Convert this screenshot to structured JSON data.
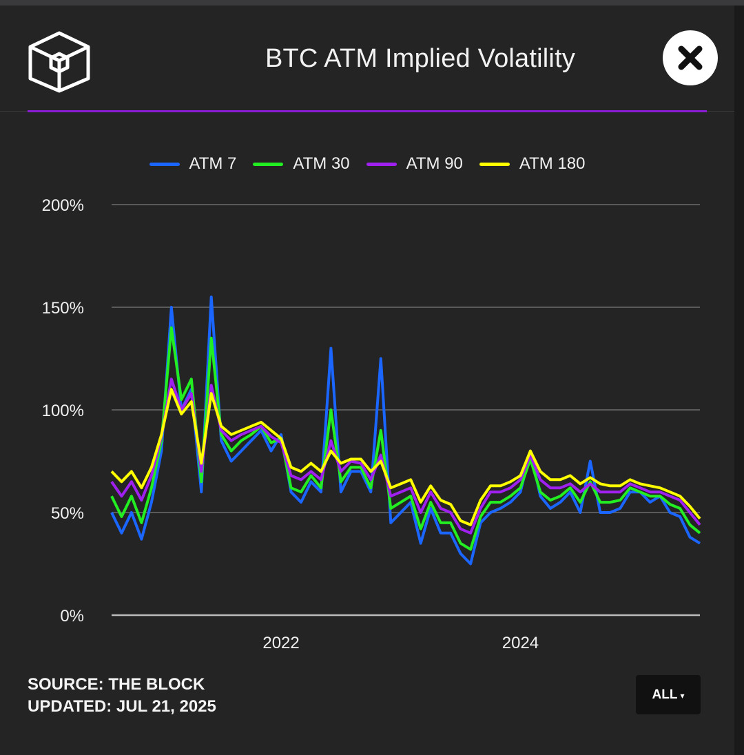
{
  "header": {
    "title": "BTC ATM Implied Volatility",
    "logo_icon": "cube-logo-icon",
    "close_icon": "close-x-icon",
    "accent_color": "#8a1cd4"
  },
  "legend": [
    {
      "name": "ATM 7",
      "color": "#1a66ff"
    },
    {
      "name": "ATM 30",
      "color": "#22ee22"
    },
    {
      "name": "ATM 90",
      "color": "#a020f0"
    },
    {
      "name": "ATM 180",
      "color": "#ffff00"
    }
  ],
  "chart_data": {
    "type": "line",
    "title": "BTC ATM Implied Volatility",
    "xlabel": "",
    "ylabel": "",
    "yticks": [
      "200%",
      "150%",
      "100%",
      "50%",
      "0%"
    ],
    "xticks": [
      "2022",
      "2024"
    ],
    "ylim": [
      0,
      200
    ],
    "xlim": [
      "2020-08",
      "2025-07"
    ],
    "grid": true,
    "legend_position": "top",
    "x": [
      "2020-08",
      "2020-09",
      "2020-10",
      "2020-11",
      "2020-12",
      "2021-01",
      "2021-02",
      "2021-03",
      "2021-04",
      "2021-05",
      "2021-06",
      "2021-07",
      "2021-08",
      "2021-09",
      "2021-10",
      "2021-11",
      "2021-12",
      "2022-01",
      "2022-02",
      "2022-03",
      "2022-04",
      "2022-05",
      "2022-06",
      "2022-07",
      "2022-08",
      "2022-09",
      "2022-10",
      "2022-11",
      "2022-12",
      "2023-01",
      "2023-02",
      "2023-03",
      "2023-04",
      "2023-05",
      "2023-06",
      "2023-07",
      "2023-08",
      "2023-09",
      "2023-10",
      "2023-11",
      "2023-12",
      "2024-01",
      "2024-02",
      "2024-03",
      "2024-04",
      "2024-05",
      "2024-06",
      "2024-07",
      "2024-08",
      "2024-09",
      "2024-10",
      "2024-11",
      "2024-12",
      "2025-01",
      "2025-02",
      "2025-03",
      "2025-04",
      "2025-05",
      "2025-06",
      "2025-07"
    ],
    "series": [
      {
        "name": "ATM 7",
        "color": "#1a66ff",
        "values": [
          50,
          40,
          50,
          37,
          55,
          80,
          150,
          100,
          110,
          60,
          155,
          85,
          75,
          80,
          85,
          90,
          80,
          88,
          60,
          55,
          65,
          60,
          130,
          60,
          70,
          70,
          60,
          125,
          45,
          50,
          55,
          35,
          52,
          40,
          40,
          30,
          25,
          45,
          50,
          52,
          55,
          60,
          80,
          58,
          52,
          55,
          60,
          50,
          75,
          50,
          50,
          52,
          60,
          60,
          55,
          58,
          50,
          48,
          38,
          35
        ]
      },
      {
        "name": "ATM 30",
        "color": "#22ee22",
        "values": [
          58,
          48,
          58,
          45,
          62,
          85,
          140,
          105,
          115,
          65,
          135,
          88,
          80,
          85,
          88,
          92,
          84,
          86,
          62,
          60,
          68,
          62,
          100,
          65,
          72,
          72,
          62,
          90,
          52,
          55,
          58,
          42,
          55,
          45,
          45,
          35,
          32,
          48,
          55,
          55,
          58,
          62,
          76,
          60,
          56,
          58,
          62,
          55,
          65,
          55,
          55,
          56,
          62,
          60,
          58,
          58,
          54,
          52,
          44,
          40
        ]
      },
      {
        "name": "ATM 90",
        "color": "#a020f0",
        "values": [
          65,
          58,
          65,
          56,
          68,
          87,
          115,
          100,
          108,
          70,
          112,
          90,
          85,
          88,
          90,
          92,
          87,
          84,
          68,
          66,
          70,
          66,
          85,
          70,
          75,
          74,
          66,
          78,
          58,
          60,
          62,
          50,
          60,
          52,
          50,
          42,
          40,
          52,
          60,
          60,
          62,
          66,
          78,
          66,
          62,
          62,
          64,
          60,
          64,
          60,
          60,
          60,
          64,
          62,
          60,
          60,
          58,
          56,
          50,
          44
        ]
      },
      {
        "name": "ATM 180",
        "color": "#ffff00",
        "values": [
          70,
          65,
          70,
          62,
          72,
          88,
          110,
          98,
          104,
          74,
          108,
          92,
          88,
          90,
          92,
          94,
          90,
          86,
          72,
          70,
          74,
          70,
          80,
          74,
          76,
          76,
          70,
          75,
          62,
          64,
          66,
          55,
          63,
          56,
          54,
          46,
          44,
          56,
          63,
          63,
          65,
          68,
          80,
          70,
          66,
          66,
          68,
          64,
          67,
          64,
          63,
          63,
          66,
          64,
          63,
          62,
          60,
          58,
          53,
          47
        ]
      }
    ]
  },
  "footer": {
    "source": "SOURCE: THE BLOCK",
    "updated": "UPDATED: JUL 21, 2025"
  },
  "range_button": {
    "label": "ALL",
    "arrow": "▾"
  }
}
